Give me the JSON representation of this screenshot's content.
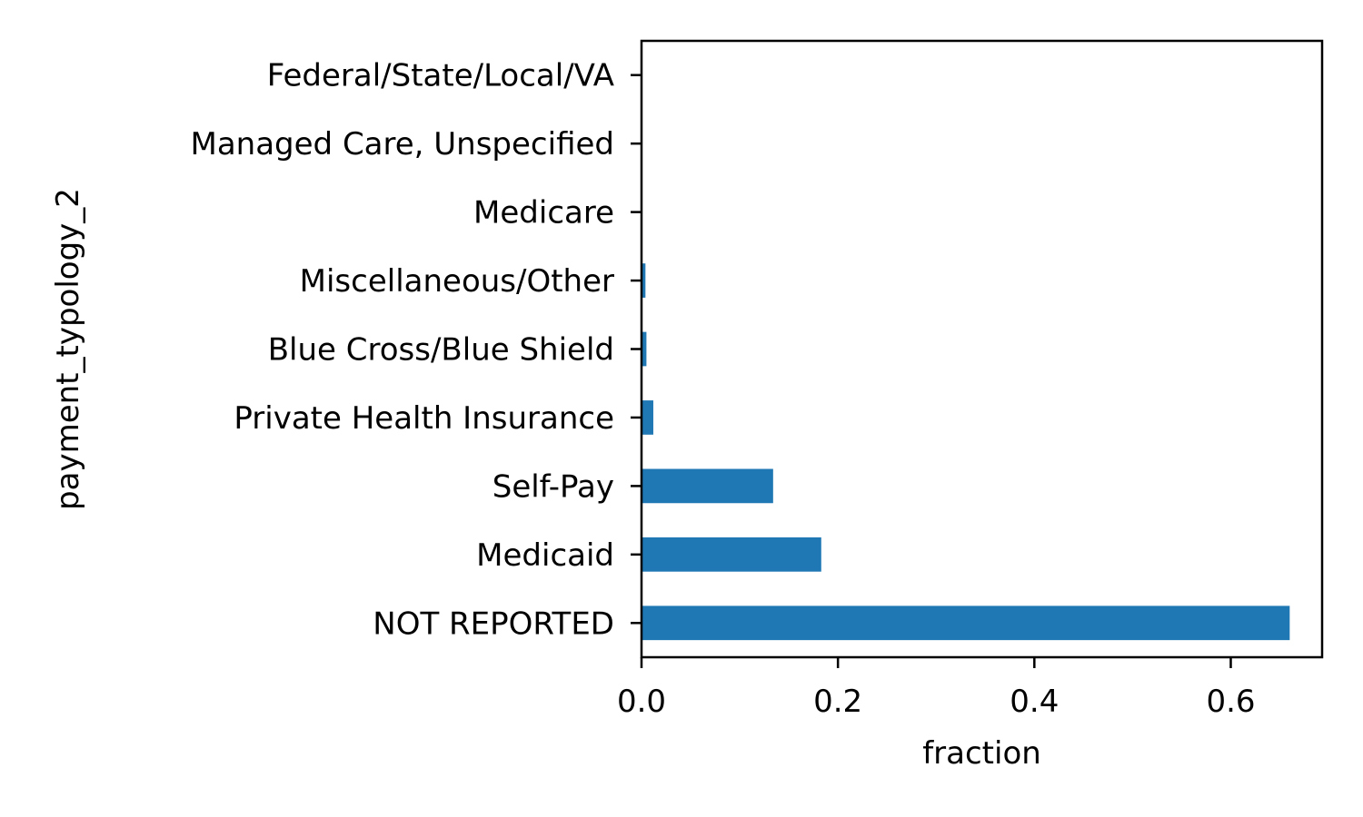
{
  "chart_data": {
    "type": "bar",
    "orientation": "horizontal",
    "title": "",
    "xlabel": "fraction",
    "ylabel": "payment_typology_2",
    "categories": [
      "NOT REPORTED",
      "Medicaid",
      "Self-Pay",
      "Private Health Insurance",
      "Blue Cross/Blue Shield",
      "Miscellaneous/Other",
      "Medicare",
      "Managed Care, Unspecified",
      "Federal/State/Local/VA"
    ],
    "values": [
      0.66,
      0.183,
      0.134,
      0.012,
      0.005,
      0.004,
      0.0005,
      0.0003,
      0.0002
    ],
    "xlim": [
      0,
      0.693
    ],
    "xticks": [
      0.0,
      0.2,
      0.4,
      0.6
    ],
    "xtick_labels": [
      "0.0",
      "0.2",
      "0.4",
      "0.6"
    ],
    "bar_color": "#1f77b4",
    "grid": false,
    "legend": "none"
  }
}
